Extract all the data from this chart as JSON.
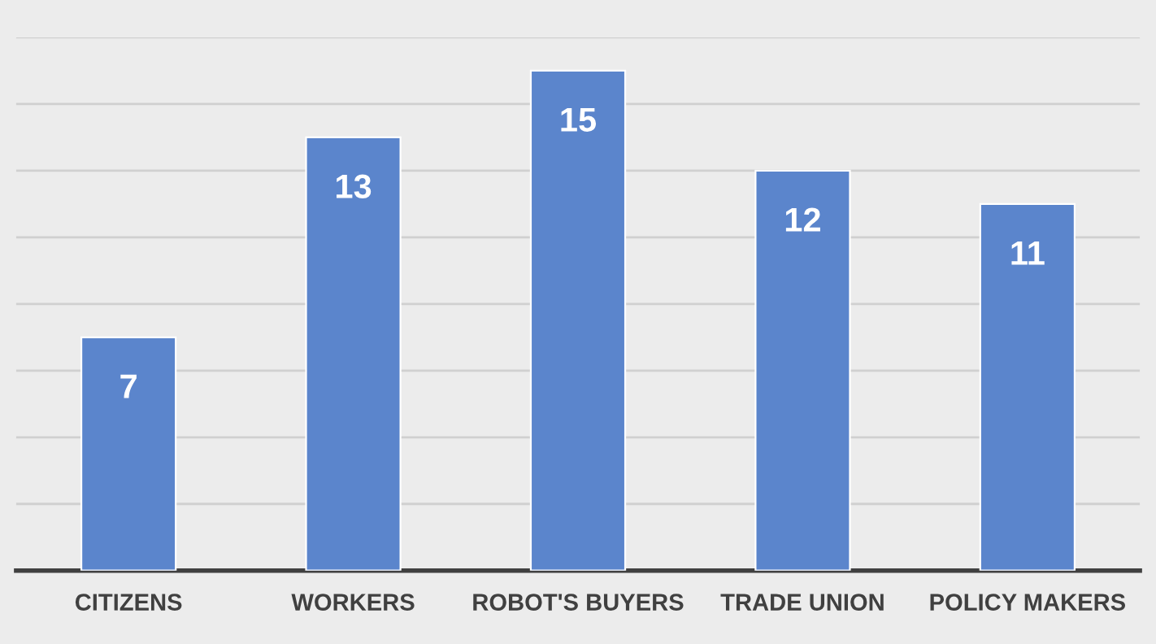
{
  "chart_data": {
    "type": "bar",
    "categories": [
      "CITIZENS",
      "WORKERS",
      "ROBOT'S BUYERS",
      "TRADE UNION",
      "POLICY MAKERS"
    ],
    "values": [
      7,
      13,
      15,
      12,
      11
    ],
    "color": "#5b85cc",
    "data_labels": true,
    "ylim": [
      0,
      16
    ],
    "yticks": [
      {
        "value": 0,
        "label": null
      },
      {
        "value": 2,
        "label": null
      },
      {
        "value": 4,
        "label": null
      },
      {
        "value": 6,
        "label": null
      },
      {
        "value": 8,
        "label": null
      },
      {
        "value": 10,
        "label": null
      },
      {
        "value": 12,
        "label": null
      },
      {
        "value": 14,
        "label": null
      },
      {
        "value": 16,
        "label": null
      }
    ],
    "grid": "y",
    "tick_labels": "x"
  }
}
